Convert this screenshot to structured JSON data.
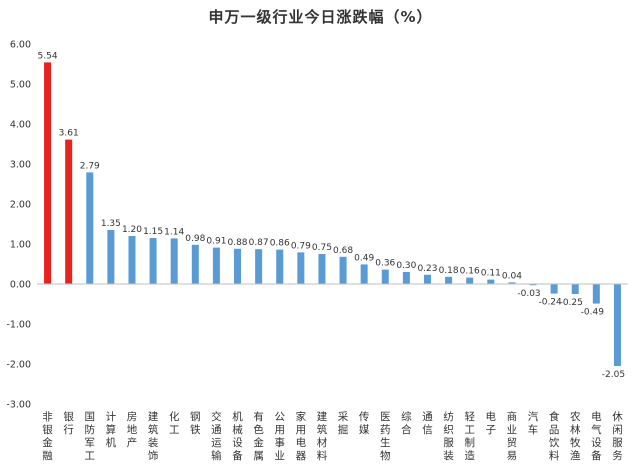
{
  "chart_data": {
    "type": "bar",
    "title": "申万一级行业今日涨跌幅（%）",
    "xlabel": "",
    "ylabel": "",
    "ylim": [
      -3.0,
      6.0
    ],
    "yticks": [
      "-3.00",
      "-2.00",
      "-1.00",
      "0.00",
      "1.00",
      "2.00",
      "3.00",
      "4.00",
      "5.00",
      "6.00"
    ],
    "grid": false,
    "legend": "none",
    "categories": [
      "非银金融",
      "银行",
      "国防军工",
      "计算机",
      "房地产",
      "建筑装饰",
      "化工",
      "钢铁",
      "交通运输",
      "机械设备",
      "有色金属",
      "公用事业",
      "家用电器",
      "建筑材料",
      "采掘",
      "传媒",
      "医药生物",
      "综合",
      "通信",
      "纺织服装",
      "轻工制造",
      "电子",
      "商业贸易",
      "汽车",
      "食品饮料",
      "农林牧渔",
      "电气设备",
      "休闲服务"
    ],
    "values": [
      5.54,
      3.61,
      2.79,
      1.35,
      1.2,
      1.15,
      1.14,
      0.98,
      0.91,
      0.88,
      0.87,
      0.86,
      0.79,
      0.75,
      0.68,
      0.49,
      0.36,
      0.3,
      0.23,
      0.18,
      0.16,
      0.11,
      0.04,
      -0.03,
      -0.24,
      -0.25,
      -0.49,
      -2.05
    ],
    "data_labels": [
      "5.54",
      "3.61",
      "2.79",
      "1.35",
      "1.20",
      "1.15",
      "1.14",
      "0.98",
      "0.91",
      "0.88",
      "0.87",
      "0.86",
      "0.79",
      "0.75",
      "0.68",
      "0.49",
      "0.36",
      "0.30",
      "0.23",
      "0.18",
      "0.16",
      "0.11",
      "0.04",
      "-0.03",
      "-0.24",
      "-0.25",
      "-0.49",
      "-2.05"
    ],
    "highlight_count": 2,
    "colors": {
      "highlight": "#e8231f",
      "default": "#5b9bd5",
      "axis": "#bfbfbf",
      "text": "#333333"
    }
  }
}
